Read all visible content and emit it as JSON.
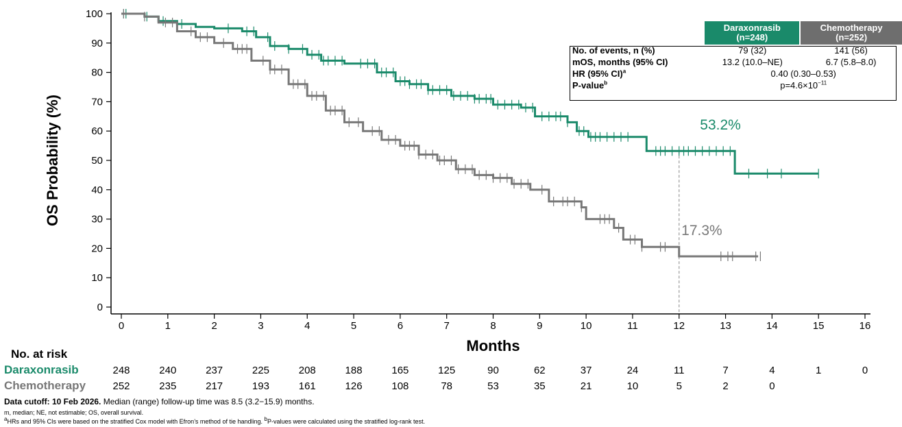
{
  "chart_data": {
    "type": "line",
    "xlabel": "Months",
    "ylabel": "OS Probability (%)",
    "xlim": [
      0,
      16
    ],
    "ylim": [
      0,
      100
    ],
    "x_ticks": [
      0,
      1,
      2,
      3,
      4,
      5,
      6,
      7,
      8,
      9,
      10,
      11,
      12,
      13,
      14,
      15,
      16
    ],
    "y_ticks": [
      0,
      10,
      20,
      30,
      40,
      50,
      60,
      70,
      80,
      90,
      100
    ],
    "grid": false,
    "reference_line": {
      "x": 12,
      "style": "dashed"
    },
    "series": [
      {
        "name": "Daraxonrasib",
        "color": "#1a8a6a",
        "end_label": "53.2%",
        "points": [
          [
            0,
            100
          ],
          [
            0.5,
            99
          ],
          [
            0.8,
            97.5
          ],
          [
            1.2,
            96.5
          ],
          [
            1.6,
            95.5
          ],
          [
            2,
            95
          ],
          [
            2.6,
            94
          ],
          [
            2.9,
            92
          ],
          [
            3.2,
            89
          ],
          [
            3.6,
            88
          ],
          [
            4,
            86
          ],
          [
            4.3,
            84
          ],
          [
            4.8,
            83
          ],
          [
            5.2,
            83
          ],
          [
            5.5,
            80
          ],
          [
            5.9,
            77
          ],
          [
            6.2,
            76
          ],
          [
            6.6,
            74
          ],
          [
            7.1,
            72
          ],
          [
            7.6,
            71
          ],
          [
            8,
            69
          ],
          [
            8.6,
            68
          ],
          [
            8.9,
            65
          ],
          [
            9.3,
            65
          ],
          [
            9.6,
            63
          ],
          [
            9.8,
            60
          ],
          [
            10.05,
            58
          ],
          [
            10.5,
            58
          ],
          [
            11,
            58
          ],
          [
            11.3,
            53.2
          ],
          [
            12,
            53.2
          ],
          [
            13.2,
            53.2
          ],
          [
            13.2,
            45.5
          ],
          [
            15,
            45.5
          ]
        ],
        "censor_x": [
          0.05,
          0.1,
          0.55,
          0.9,
          1.3,
          2.3,
          2.7,
          2.85,
          3.15,
          3.3,
          3.6,
          3.9,
          4.1,
          4.25,
          4.35,
          4.45,
          4.6,
          4.75,
          5.15,
          5.3,
          5.45,
          5.6,
          5.7,
          5.85,
          6,
          6.1,
          6.2,
          6.35,
          6.45,
          6.6,
          6.7,
          6.85,
          7,
          7.15,
          7.3,
          7.45,
          7.6,
          7.7,
          7.85,
          7.95,
          8.1,
          8.25,
          8.4,
          8.55,
          8.7,
          8.85,
          9.05,
          9.2,
          9.35,
          9.45,
          9.6,
          9.85,
          9.95,
          10.1,
          10.2,
          10.3,
          10.45,
          10.6,
          10.75,
          10.9,
          11.5,
          11.6,
          11.7,
          11.85,
          12,
          12.1,
          12.2,
          12.35,
          12.5,
          12.65,
          12.8,
          12.95,
          13.1,
          13.5,
          13.9,
          14.2,
          15
        ]
      },
      {
        "name": "Chemotherapy",
        "color": "#777777",
        "end_label": "17.3%",
        "points": [
          [
            0,
            100
          ],
          [
            0.5,
            99
          ],
          [
            0.8,
            97
          ],
          [
            1.2,
            94
          ],
          [
            1.6,
            92
          ],
          [
            2,
            90
          ],
          [
            2.4,
            88
          ],
          [
            2.8,
            84
          ],
          [
            3.2,
            81
          ],
          [
            3.6,
            76
          ],
          [
            4,
            72
          ],
          [
            4.4,
            67
          ],
          [
            4.8,
            63
          ],
          [
            5.2,
            60
          ],
          [
            5.6,
            57
          ],
          [
            6,
            55
          ],
          [
            6.4,
            52
          ],
          [
            6.8,
            50
          ],
          [
            7.2,
            47
          ],
          [
            7.6,
            45
          ],
          [
            8,
            44
          ],
          [
            8.4,
            42
          ],
          [
            8.8,
            40
          ],
          [
            9.2,
            36
          ],
          [
            9.6,
            36
          ],
          [
            9.9,
            34
          ],
          [
            10,
            30
          ],
          [
            10.5,
            30
          ],
          [
            10.6,
            27
          ],
          [
            10.8,
            23
          ],
          [
            11.1,
            23
          ],
          [
            11.2,
            20.5
          ],
          [
            11.9,
            20.5
          ],
          [
            12,
            17.3
          ],
          [
            13,
            17.3
          ],
          [
            13.7,
            17.3
          ]
        ],
        "censor_x": [
          0.05,
          0.5,
          0.95,
          1.1,
          1.5,
          1.7,
          1.85,
          2.2,
          2.5,
          2.6,
          2.7,
          3.05,
          3.2,
          3.3,
          3.45,
          3.7,
          3.8,
          3.95,
          4.1,
          4.2,
          4.35,
          4.5,
          4.6,
          4.75,
          4.9,
          5.1,
          5.4,
          5.55,
          5.75,
          5.9,
          6.1,
          6.2,
          6.3,
          6.4,
          6.55,
          6.7,
          6.85,
          6.95,
          7.1,
          7.25,
          7.4,
          7.55,
          7.7,
          7.85,
          8,
          8.15,
          8.3,
          8.45,
          8.6,
          8.75,
          9.05,
          9.3,
          9.5,
          9.6,
          9.75,
          9.9,
          10.3,
          10.4,
          10.5,
          10.7,
          10.95,
          11.05,
          11.2,
          11.6,
          11.7,
          12.9,
          13.05,
          13.15,
          13.65,
          13.75
        ]
      }
    ],
    "risk_table": {
      "title": "No. at risk",
      "times": [
        "0",
        "1",
        "2",
        "3",
        "4",
        "5",
        "6",
        "7",
        "8",
        "9",
        "10",
        "11",
        "12",
        "13",
        "14",
        "15",
        "16"
      ],
      "rows": [
        {
          "name": "Daraxonrasib",
          "color": "#1a8a6a",
          "values": [
            "248",
            "240",
            "237",
            "225",
            "208",
            "188",
            "165",
            "125",
            "90",
            "62",
            "37",
            "24",
            "11",
            "7",
            "4",
            "1",
            "0"
          ]
        },
        {
          "name": "Chemotherapy",
          "color": "#777777",
          "values": [
            "252",
            "235",
            "217",
            "193",
            "161",
            "126",
            "108",
            "78",
            "53",
            "35",
            "21",
            "10",
            "5",
            "2",
            "0",
            "",
            ""
          ]
        }
      ]
    }
  },
  "stats_table": {
    "col_drx": "Daraxonrasib",
    "col_drx_n": "(n=248)",
    "col_chm": "Chemotherapy",
    "col_chm_n": "(n=252)",
    "row1_label": "No. of events, n (%)",
    "row1_drx": "79 (32)",
    "row1_chm": "141 (56)",
    "row2_label": "mOS, months (95% CI)",
    "row2_drx": "13.2 (10.0–NE)",
    "row2_chm": "6.7 (5.8–8.0)",
    "row3_label": "HR (95% CI)",
    "row3_sup": "a",
    "row3_val": "0.40 (0.30–0.53)",
    "row4_label": "P-value",
    "row4_sup": "b",
    "row4_val": "p=4.6×10",
    "row4_exp": "−11"
  },
  "footnotes": {
    "cutoff_bold": "Data cutoff: 10 Feb 2026.",
    "cutoff_rest": " Median (range) follow-up time was 8.5 (3.2−15.9) months.",
    "abbrev": "m, median; NE, not estimable; OS, overall survival.",
    "sup_a": "a",
    "note_a": "HRs and 95% CIs were based on the stratified Cox model with Efron’s method of tie handling. ",
    "sup_b": "b",
    "note_b": "P-values were calculated using the stratified log-rank test."
  }
}
